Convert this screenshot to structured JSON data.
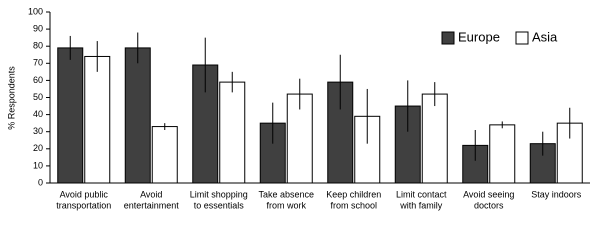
{
  "chart_data": {
    "type": "bar",
    "y_label": "% Respondents",
    "categories": [
      [
        "Avoid public",
        "transportation"
      ],
      [
        "Avoid",
        "entertainment"
      ],
      [
        "Limit shopping",
        "to essentials"
      ],
      [
        "Take absence",
        "from work"
      ],
      [
        "Keep children",
        "from school"
      ],
      [
        "Limit contact",
        "with family"
      ],
      [
        "Avoid seeing",
        "doctors"
      ],
      [
        "Stay indoors"
      ]
    ],
    "series": [
      {
        "name": "Europe",
        "color": "#404040",
        "values": [
          79,
          79,
          69,
          35,
          59,
          45,
          22,
          23
        ],
        "errors": [
          7,
          9,
          16,
          12,
          16,
          15,
          9,
          7
        ]
      },
      {
        "name": "Asia",
        "color": "#ffffff",
        "values": [
          74,
          33,
          59,
          52,
          39,
          52,
          34,
          35
        ],
        "errors": [
          9,
          2,
          6,
          9,
          16,
          7,
          2,
          9
        ]
      }
    ],
    "ylim": [
      0,
      100
    ],
    "yticks": [
      0,
      10,
      20,
      30,
      40,
      50,
      60,
      70,
      80,
      90,
      100
    ],
    "grid": false,
    "legend": "top-right"
  }
}
